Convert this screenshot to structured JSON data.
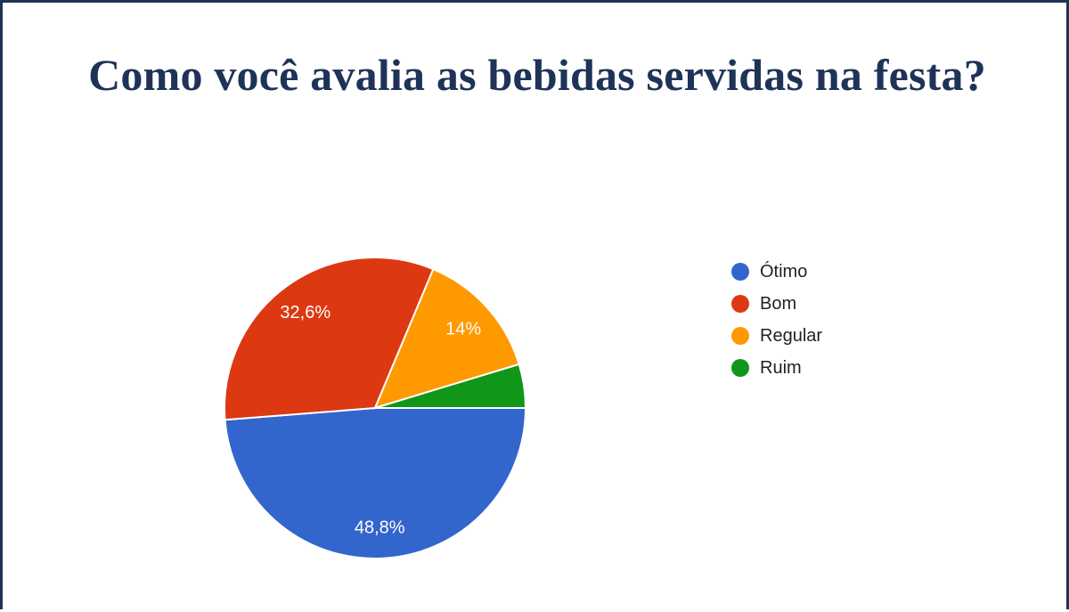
{
  "title": "Como você avalia as bebidas servidas na festa?",
  "chart_data": {
    "type": "pie",
    "title": "Como você avalia as bebidas servidas na festa?",
    "categories": [
      "Ótimo",
      "Bom",
      "Regular",
      "Ruim"
    ],
    "values": [
      48.8,
      32.6,
      14.0,
      4.7
    ],
    "labels": [
      "48,8%",
      "32,6%",
      "14%",
      ""
    ],
    "colors": [
      "#3366cc",
      "#dc3912",
      "#ff9900",
      "#109618"
    ],
    "legend_position": "right",
    "start": "right, clockwise"
  }
}
